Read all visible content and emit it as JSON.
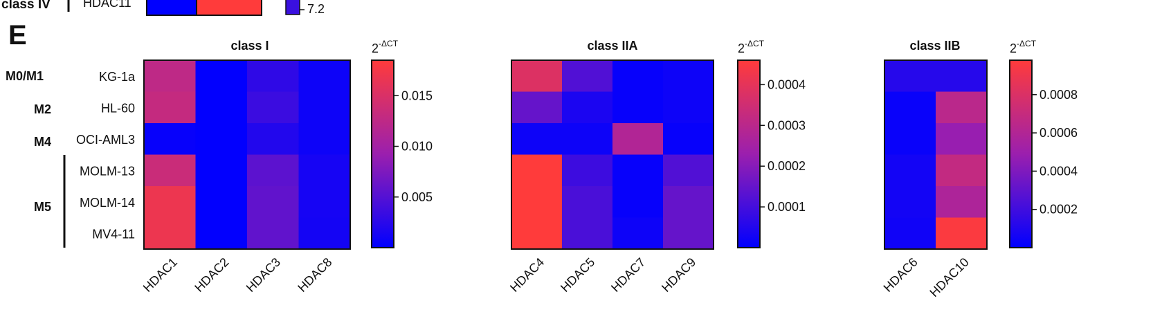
{
  "panel_letter": "E",
  "top_fragment": {
    "group_label": "class IV",
    "row_label": "HDAC11",
    "scale_label": "7.2"
  },
  "row_groups": [
    {
      "label": "M0/M1",
      "rows": [
        "KG-1a"
      ]
    },
    {
      "label": "M2",
      "rows": [
        "HL-60"
      ]
    },
    {
      "label": "M4",
      "rows": [
        "OCI-AML3"
      ]
    },
    {
      "label": "M5",
      "rows": [
        "MOLM-13",
        "MOLM-14",
        "MV4-11"
      ]
    }
  ],
  "colorbar_label": {
    "base": "2",
    "sup": "-ΔCT"
  },
  "colors": {
    "low": "#0000ff",
    "high": "#ff3b3b",
    "mid": "#9b1fae"
  },
  "chart_data": [
    {
      "type": "heatmap",
      "title": "class I",
      "rows": [
        "KG-1a",
        "HL-60",
        "OCI-AML3",
        "MOLM-13",
        "MOLM-14",
        "MV4-11"
      ],
      "columns": [
        "HDAC1",
        "HDAC2",
        "HDAC3",
        "HDAC8"
      ],
      "values": [
        [
          0.0125,
          0.0001,
          0.0028,
          0.0008
        ],
        [
          0.013,
          0.0001,
          0.0035,
          0.0008
        ],
        [
          0.0004,
          0.0001,
          0.002,
          0.0008
        ],
        [
          0.0135,
          0.0001,
          0.0055,
          0.0013
        ],
        [
          0.0168,
          0.0001,
          0.0058,
          0.0013
        ],
        [
          0.0168,
          0.0001,
          0.0058,
          0.0012
        ]
      ],
      "colorbar": {
        "min": 0,
        "max": 0.0185,
        "ticks": [
          0.005,
          0.01,
          0.015
        ],
        "tick_labels": [
          "0.005",
          "0.010",
          "0.015"
        ]
      }
    },
    {
      "type": "heatmap",
      "title": "class IIA",
      "rows": [
        "KG-1a",
        "HL-60",
        "OCI-AML3",
        "MOLM-13",
        "MOLM-14",
        "MV4-11"
      ],
      "columns": [
        "HDAC4",
        "HDAC5",
        "HDAC7",
        "HDAC9"
      ],
      "values": [
        [
          0.00038,
          0.00012,
          1e-05,
          2e-05
        ],
        [
          0.00015,
          4e-05,
          1e-05,
          2e-05
        ],
        [
          2e-05,
          2e-05,
          0.00028,
          1e-05
        ],
        [
          0.00046,
          9e-05,
          1e-05,
          0.00012
        ],
        [
          0.00046,
          0.00011,
          1e-05,
          0.00015
        ],
        [
          0.00046,
          0.00011,
          2e-05,
          0.00015
        ]
      ],
      "colorbar": {
        "min": 0,
        "max": 0.00046,
        "ticks": [
          0.0001,
          0.0002,
          0.0003,
          0.0004
        ],
        "tick_labels": [
          "0.0001",
          "0.0002",
          "0.0003",
          "0.0004"
        ]
      }
    },
    {
      "type": "heatmap",
      "title": "class IIB",
      "rows": [
        "KG-1a",
        "HL-60",
        "OCI-AML3",
        "MOLM-13",
        "MOLM-14",
        "MV4-11"
      ],
      "columns": [
        "HDAC6",
        "HDAC10"
      ],
      "values": [
        [
          0.00012,
          0.00012
        ],
        [
          3e-05,
          0.00064
        ],
        [
          3e-05,
          0.00048
        ],
        [
          6e-05,
          0.00068
        ],
        [
          6e-05,
          0.00058
        ],
        [
          5e-05,
          0.00096
        ]
      ],
      "colorbar": {
        "min": 0,
        "max": 0.00098,
        "ticks": [
          0.0002,
          0.0004,
          0.0006,
          0.0008
        ],
        "tick_labels": [
          "0.0002",
          "0.0004",
          "0.0006",
          "0.0008"
        ]
      }
    }
  ]
}
